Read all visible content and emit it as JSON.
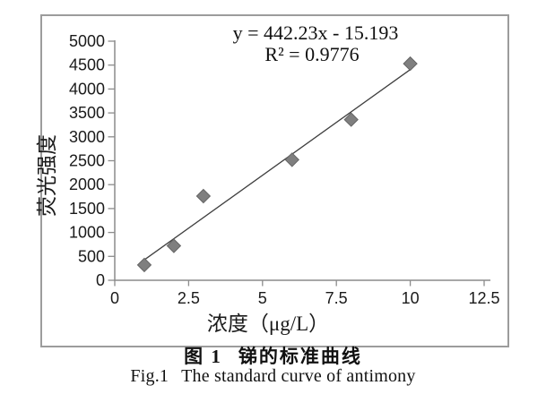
{
  "figure": {
    "caption_cn": {
      "label": "图 1",
      "title": "锑的标准曲线"
    },
    "caption_en": {
      "label": "Fig.1",
      "title": "The standard curve of antimony"
    }
  },
  "chart_data": {
    "type": "scatter",
    "title": "",
    "annotation": {
      "equation": "y = 442.23x - 15.193",
      "r_squared": "R² = 0.9776"
    },
    "xlabel": "浓度（μg/L）",
    "ylabel": "荧光强度",
    "xlim": [
      0,
      12.5
    ],
    "ylim": [
      0,
      5000
    ],
    "x_ticks": [
      "0",
      "2.5",
      "5",
      "7.5",
      "10",
      "12.5"
    ],
    "x_tick_values": [
      0,
      2.5,
      5,
      7.5,
      10,
      12.5
    ],
    "y_ticks": [
      "0",
      "500",
      "1000",
      "1500",
      "2000",
      "2500",
      "3000",
      "3500",
      "4000",
      "4500",
      "5000"
    ],
    "y_tick_values": [
      0,
      500,
      1000,
      1500,
      2000,
      2500,
      3000,
      3500,
      4000,
      4500,
      5000
    ],
    "grid": "off",
    "legend": "none",
    "marker": "diamond",
    "points": [
      {
        "x": 1,
        "y": 320
      },
      {
        "x": 2,
        "y": 720
      },
      {
        "x": 3,
        "y": 1760
      },
      {
        "x": 6,
        "y": 2520
      },
      {
        "x": 8,
        "y": 3360
      },
      {
        "x": 10,
        "y": 4530
      }
    ],
    "trendline": {
      "slope": 442.23,
      "intercept": -15.193,
      "x_start": 1,
      "x_end": 10
    },
    "colors": {
      "marker_fill": "#7f7f7f",
      "marker_edge": "#646464",
      "trendline": "#3f3f3f",
      "axis": "#8c8c8c",
      "text": "#1a1a1a",
      "frame": "#9c9c9c"
    }
  }
}
